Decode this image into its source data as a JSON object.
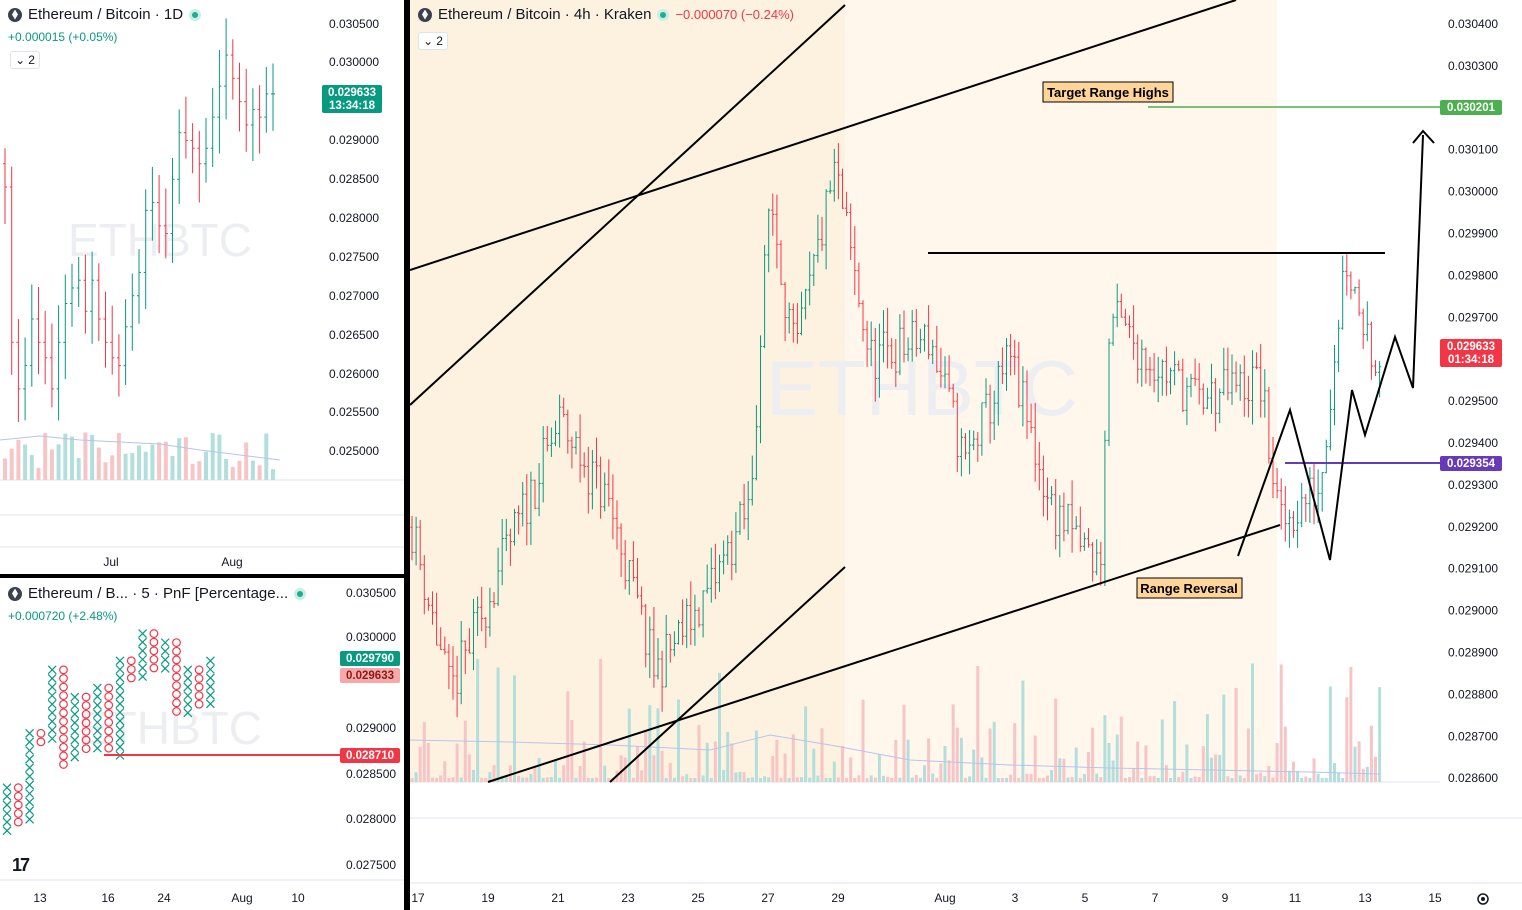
{
  "colors": {
    "up": "#089981",
    "down": "#f23645",
    "volume_up": "#b2dfdb",
    "volume_down": "#f7c5c5",
    "channel_fill": "#fdf1e0",
    "axis_text": "#131722",
    "grid": "#f0f3fa",
    "target_line": "#4caf50",
    "level_line": "#673ab7",
    "pnf_level": "#f23645"
  },
  "icons": {
    "symbol": "ethereum-icon",
    "status": "market-open-dot-icon",
    "indicators": "chevron-down-icon",
    "logo": "tradingview-logo-icon",
    "settings": "gear-icon"
  },
  "pane1": {
    "symbol": "Ethereum / Bitcoin · 1D",
    "change": "+0.000015 (+0.05%)",
    "indicator_count": "2",
    "watermark": "ETHBTC",
    "price_badge": {
      "price": "0.029633",
      "countdown": "13:34:18"
    },
    "y_ticks": [
      "0.030500",
      "0.030000",
      "0.029000",
      "0.028500",
      "0.028000",
      "0.027500",
      "0.027000",
      "0.026500",
      "0.026000",
      "0.025500",
      "0.025000"
    ],
    "x_ticks": [
      "Jul",
      "Aug"
    ]
  },
  "pane2": {
    "symbol": "Ethereum / B... · 5 · PnF [Percentage...",
    "change": "+0.000720 (+2.48%)",
    "watermark": "ETHBTC",
    "badges": {
      "high": "0.029790",
      "last": "0.029633",
      "level": "0.028710"
    },
    "y_ticks": [
      "0.030500",
      "0.030000",
      "0.029000",
      "0.028500",
      "0.028000",
      "0.027500"
    ],
    "x_ticks": [
      "13",
      "16",
      "24",
      "Aug",
      "10"
    ]
  },
  "pane3": {
    "symbol": "Ethereum / Bitcoin · 4h · Kraken",
    "change": "−0.000070 (−0.24%)",
    "indicator_count": "2",
    "watermark": "ETHBTC",
    "annotations": {
      "target": "Target Range Highs",
      "reversal": "Range Reversal"
    },
    "badges": {
      "target": "0.030201",
      "last": "0.029633",
      "countdown": "01:34:18",
      "level": "0.029354"
    },
    "y_ticks": [
      "0.030400",
      "0.030300",
      "0.030200",
      "0.030100",
      "0.030000",
      "0.029900",
      "0.029800",
      "0.029700",
      "0.029600",
      "0.029500",
      "0.029400",
      "0.029300",
      "0.029200",
      "0.029100",
      "0.029000",
      "0.028900",
      "0.028800",
      "0.028700",
      "0.028600"
    ],
    "x_ticks": [
      "17",
      "19",
      "21",
      "23",
      "25",
      "27",
      "29",
      "Aug",
      "3",
      "5",
      "7",
      "9",
      "11",
      "13",
      "15"
    ]
  },
  "chart_data": [
    {
      "type": "candlestick",
      "timeframe": "1D",
      "y_range": [
        0.0247,
        0.0307
      ],
      "close": [
        0.0284,
        0.0264,
        0.0258,
        0.0261,
        0.0267,
        0.0264,
        0.0262,
        0.0258,
        0.0264,
        0.0269,
        0.0271,
        0.0272,
        0.0268,
        0.0272,
        0.0267,
        0.0264,
        0.0262,
        0.0261,
        0.0266,
        0.027,
        0.0273,
        0.0281,
        0.0282,
        0.0279,
        0.0278,
        0.0285,
        0.0291,
        0.029,
        0.0289,
        0.0287,
        0.0289,
        0.0293,
        0.0297,
        0.0301,
        0.0298,
        0.0295,
        0.0292,
        0.0294,
        0.0293,
        0.0296,
        0.0296
      ]
    },
    {
      "type": "point-and-figure",
      "timeframe": "5",
      "y_range": [
        0.0275,
        0.0306
      ],
      "columns": [
        [
          "x",
          0.0278,
          0.0284
        ],
        [
          "o",
          0.0284,
          0.0279
        ],
        [
          "x",
          0.028,
          0.029
        ],
        [
          "o",
          0.029,
          0.0288
        ],
        [
          "x",
          0.0288,
          0.0297
        ],
        [
          "o",
          0.0297,
          0.0286
        ],
        [
          "x",
          0.0286,
          0.0294
        ],
        [
          "o",
          0.0294,
          0.0287
        ],
        [
          "x",
          0.0287,
          0.0295
        ],
        [
          "o",
          0.0295,
          0.0287
        ],
        [
          "x",
          0.0287,
          0.0298
        ],
        [
          "o",
          0.0298,
          0.0295
        ],
        [
          "x",
          0.0295,
          0.0301
        ],
        [
          "o",
          0.0301,
          0.0296
        ],
        [
          "x",
          0.0296,
          0.03
        ],
        [
          "o",
          0.03,
          0.0291
        ],
        [
          "x",
          0.0291,
          0.0297
        ],
        [
          "o",
          0.0297,
          0.0292
        ],
        [
          "x",
          0.0292,
          0.0298
        ]
      ]
    },
    {
      "type": "candlestick",
      "timeframe": "4h",
      "y_range": [
        0.0286,
        0.03045
      ],
      "levels": {
        "resistance": 0.02986,
        "target": 0.030201,
        "last": 0.029633,
        "support": 0.029354
      }
    }
  ]
}
